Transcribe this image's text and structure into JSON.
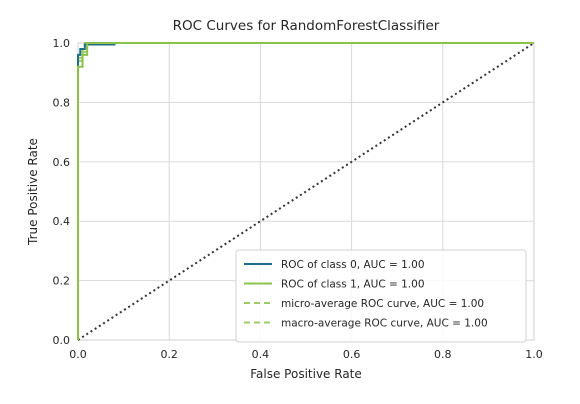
{
  "chart_data": {
    "type": "line",
    "title": "ROC Curves for RandomForestClassifier",
    "xlabel": "False Positive Rate",
    "ylabel": "True Positive Rate",
    "xlim": [
      0.0,
      1.0
    ],
    "ylim": [
      0.0,
      1.0
    ],
    "xticks": [
      "0.0",
      "0.2",
      "0.4",
      "0.6",
      "0.8",
      "1.0"
    ],
    "yticks": [
      "0.0",
      "0.2",
      "0.4",
      "0.6",
      "0.8",
      "1.0"
    ],
    "grid": true,
    "legend_position": "lower-right",
    "series": [
      {
        "name": "ROC of class 0, AUC = 1.00",
        "style": "solid",
        "color": "#1f6f8b",
        "x": [
          0.0,
          0.0,
          0.005,
          0.005,
          0.015,
          0.015,
          0.08,
          0.08,
          1.0
        ],
        "y": [
          0.0,
          0.96,
          0.96,
          0.98,
          0.98,
          0.995,
          0.995,
          1.0,
          1.0
        ]
      },
      {
        "name": "ROC of class 1, AUC = 1.00",
        "style": "solid",
        "color": "#8bc34a",
        "x": [
          0.0,
          0.0,
          0.01,
          0.01,
          0.02,
          0.02,
          1.0
        ],
        "y": [
          0.0,
          0.92,
          0.92,
          0.96,
          0.96,
          1.0,
          1.0
        ]
      },
      {
        "name": "micro-average ROC curve, AUC = 1.00",
        "style": "dashed",
        "color": "#9ccc65",
        "x": [
          0.0,
          0.0,
          0.01,
          0.01,
          0.015,
          0.015,
          1.0
        ],
        "y": [
          0.0,
          0.95,
          0.95,
          0.98,
          0.98,
          1.0,
          1.0
        ]
      },
      {
        "name": "macro-average ROC curve, AUC = 1.00",
        "style": "dashed",
        "color": "#9ccc65",
        "x": [
          0.0,
          0.0,
          0.01,
          0.01,
          0.02,
          0.02,
          1.0
        ],
        "y": [
          0.0,
          0.94,
          0.94,
          0.97,
          0.97,
          1.0,
          1.0
        ]
      }
    ],
    "reference_line": {
      "style": "dotted",
      "color": "#333333",
      "x": [
        0.0,
        1.0
      ],
      "y": [
        0.0,
        1.0
      ]
    },
    "colors": {
      "background": "#ffffff",
      "grid": "#d9d9d9",
      "frame": "#cfcfcf"
    }
  }
}
